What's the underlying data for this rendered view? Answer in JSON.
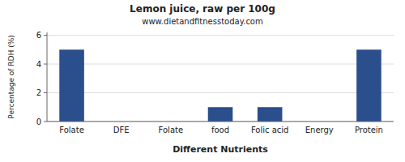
{
  "chart_data": {
    "type": "bar",
    "title": "Lemon juice, raw per 100g",
    "subtitle": "www.dietandfitnesstoday.com",
    "xlabel": "Different Nutrients",
    "ylabel": "Percentage of RDH (%)",
    "categories": [
      "Folate",
      "DFE",
      "Folate",
      "food",
      "Folic acid",
      "Energy",
      "Protein"
    ],
    "values": [
      5.0,
      0.0,
      0.0,
      1.0,
      1.0,
      0.0,
      5.0
    ],
    "color": "#2B4E8C",
    "ylim": [
      0,
      6.2
    ],
    "yticks": [
      0,
      2,
      4,
      6
    ],
    "grid": true
  }
}
